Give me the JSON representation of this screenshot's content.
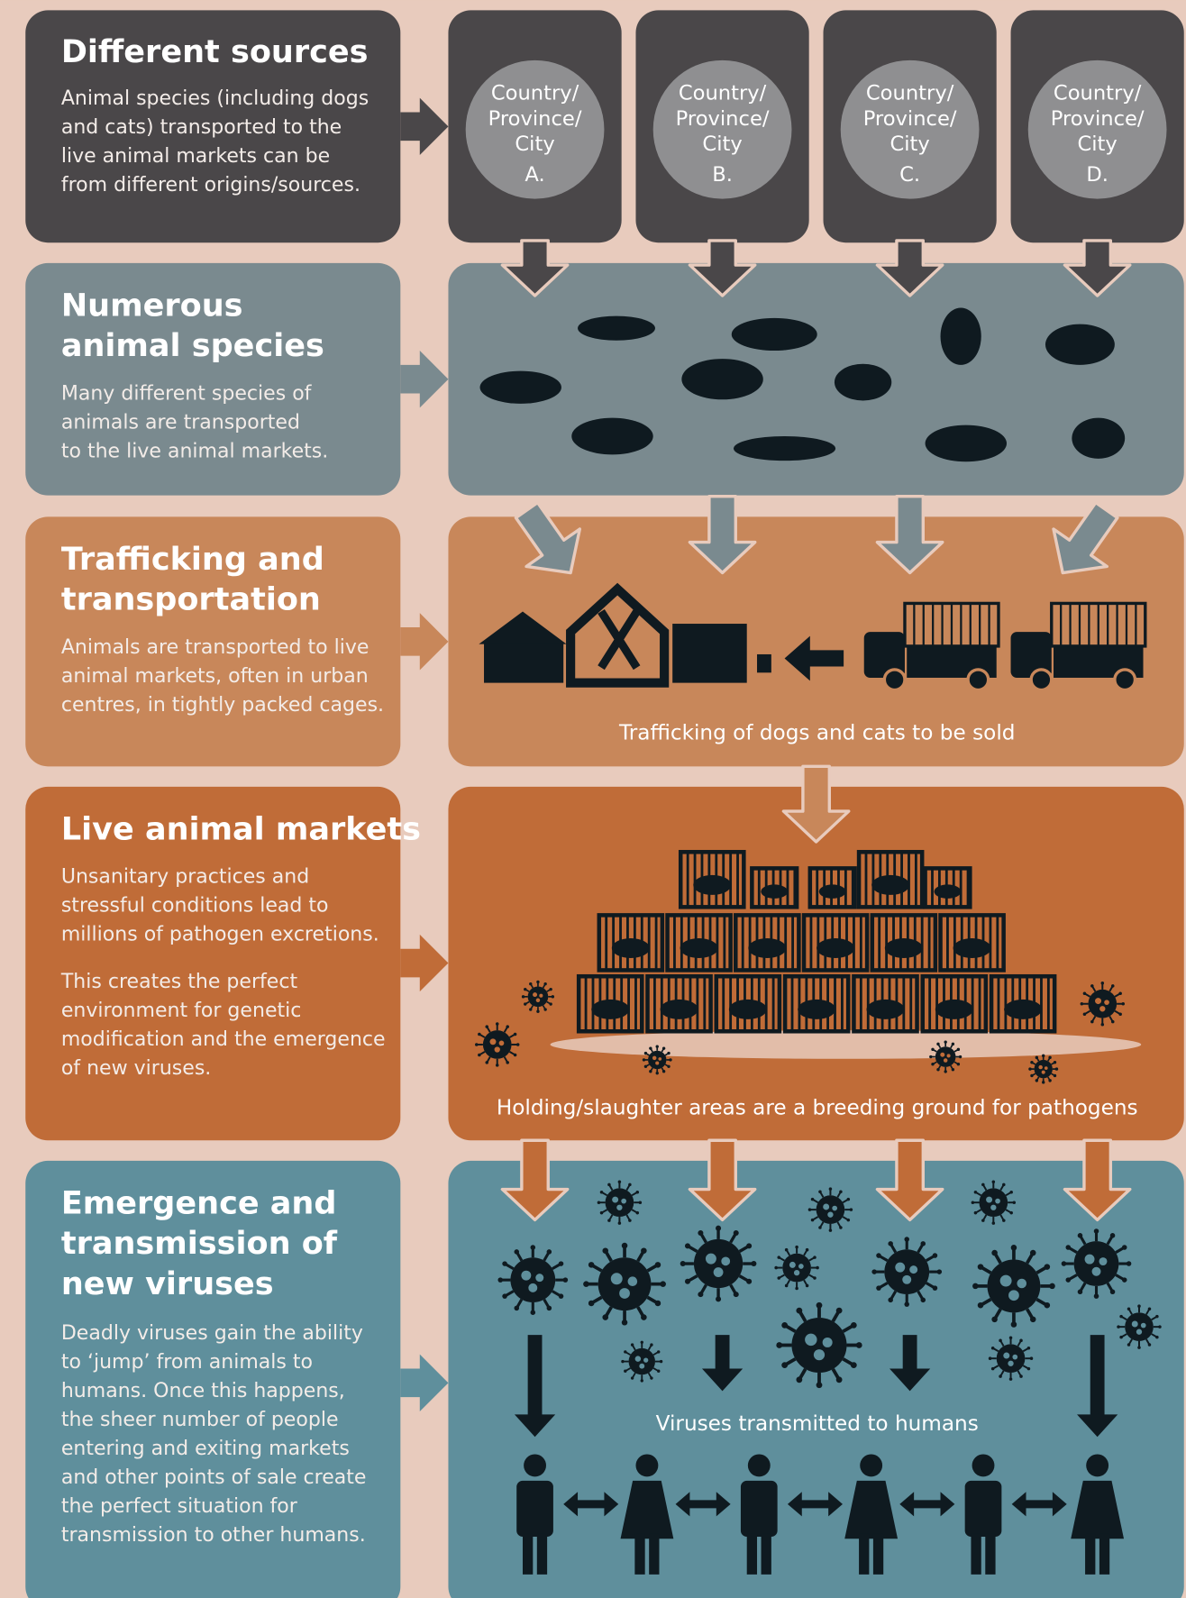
{
  "rows": [
    {
      "title_lines": [
        "Different sources"
      ],
      "paragraphs": [
        [
          "Animal species (including dogs",
          "and cats) transported to the",
          "live animal markets can be",
          "from different origins/sources."
        ]
      ]
    },
    {
      "title_lines": [
        "Numerous",
        "animal species"
      ],
      "paragraphs": [
        [
          "Many different species of",
          "animals are transported",
          "to the live animal markets."
        ]
      ]
    },
    {
      "title_lines": [
        "Trafficking and",
        "transportation"
      ],
      "paragraphs": [
        [
          "Animals are transported to live",
          "animal markets, often in urban",
          "centres, in tightly packed cages."
        ]
      ]
    },
    {
      "title_lines": [
        "Live animal markets"
      ],
      "paragraphs": [
        [
          "Unsanitary practices and",
          "stressful conditions lead to",
          "millions of pathogen excretions."
        ],
        [
          "This creates the perfect",
          "environment for genetic",
          "modification and the emergence",
          "of new viruses."
        ]
      ]
    },
    {
      "title_lines": [
        "Emergence and",
        "transmission of",
        "new viruses"
      ],
      "paragraphs": [
        [
          "Deadly viruses gain the ability",
          "to ‘jump’ from animals to",
          "humans. Once this happens,",
          "the sheer number of people",
          "entering and exiting markets",
          "and other points of sale create",
          "the perfect situation for",
          "transmission to other humans."
        ]
      ]
    }
  ],
  "sources": [
    {
      "lines": [
        "Country/",
        "Province/",
        "City"
      ],
      "letter": "A."
    },
    {
      "lines": [
        "Country/",
        "Province/",
        "City"
      ],
      "letter": "B."
    },
    {
      "lines": [
        "Country/",
        "Province/",
        "City"
      ],
      "letter": "C."
    },
    {
      "lines": [
        "Country/",
        "Province/",
        "City"
      ],
      "letter": "D."
    }
  ],
  "captions": {
    "trafficking": "Trafficking of dogs and cats to be sold",
    "holding": "Holding/slaughter areas are a breeding ground for pathogens",
    "transmission": "Viruses transmitted to humans"
  }
}
